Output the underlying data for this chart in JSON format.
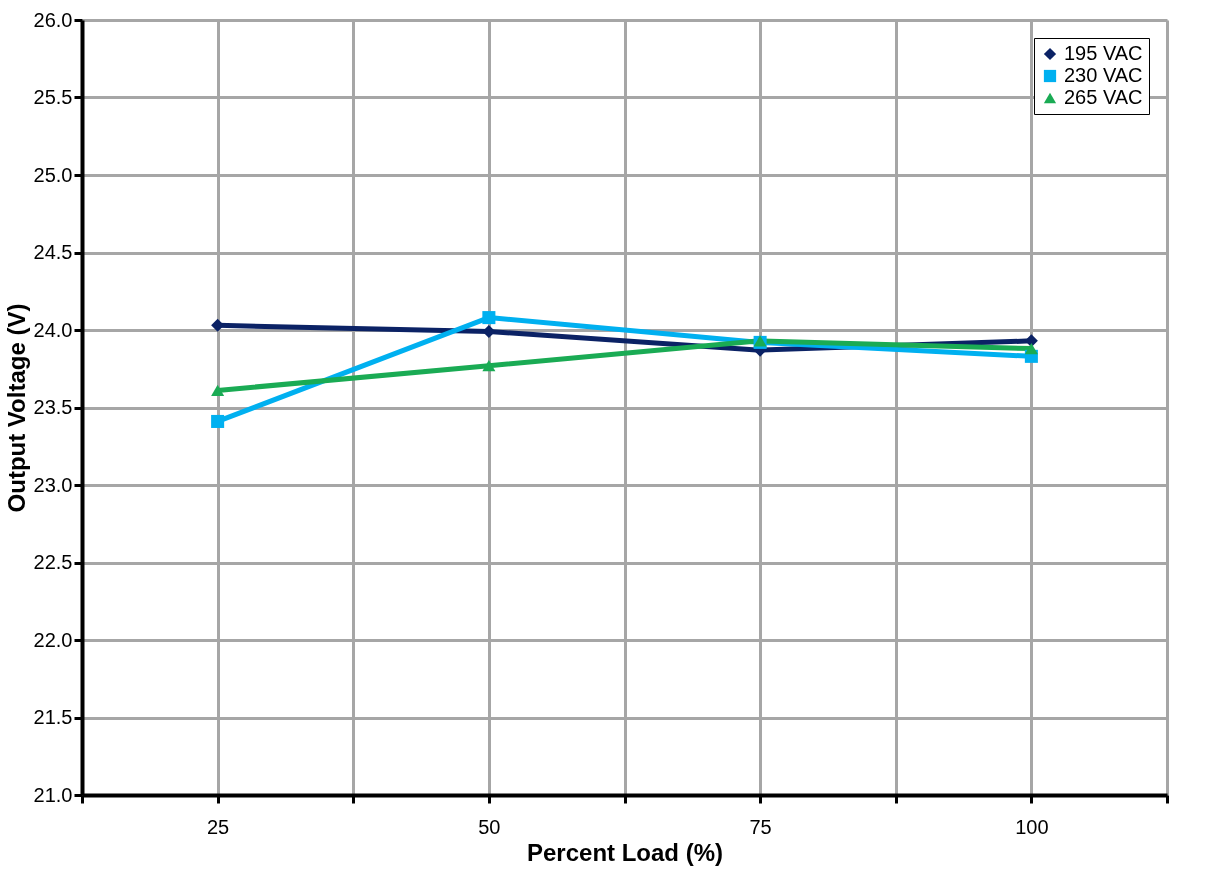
{
  "chart_data": {
    "type": "line",
    "xlabel": "Percent Load (%)",
    "ylabel": "Output Voltage (V)",
    "x": [
      25,
      50,
      75,
      100
    ],
    "series": [
      {
        "name": "195 VAC",
        "color": "#0b2265",
        "marker": "diamond",
        "values": [
          24.03,
          23.99,
          23.87,
          23.93
        ]
      },
      {
        "name": "230 VAC",
        "color": "#00b0f0",
        "marker": "square",
        "values": [
          23.41,
          24.08,
          23.92,
          23.83
        ]
      },
      {
        "name": "265 VAC",
        "color": "#1aab54",
        "marker": "triangle",
        "values": [
          23.61,
          23.77,
          23.93,
          23.88
        ]
      }
    ],
    "xlim": [
      12.5,
      112.5
    ],
    "xticks": [
      {
        "value": 12.5,
        "label": null
      },
      25,
      {
        "value": 37.5,
        "label": null
      },
      50,
      {
        "value": 62.5,
        "label": null
      },
      75,
      {
        "value": 87.5,
        "label": null
      },
      100,
      {
        "value": 112.5,
        "label": null
      }
    ],
    "ylim": [
      21.0,
      26.0
    ],
    "yticks": [
      {
        "value": 21,
        "label": "21.0"
      },
      21.5,
      {
        "value": 22,
        "label": "22.0"
      },
      22.5,
      {
        "value": 23,
        "label": "23.0"
      },
      23.5,
      {
        "value": 24,
        "label": "24.0"
      },
      24.5,
      {
        "value": 25,
        "label": "25.0"
      },
      25.5,
      {
        "value": 26,
        "label": "26.0"
      }
    ],
    "grid": true,
    "legend": "top right",
    "line_style": "solid"
  }
}
